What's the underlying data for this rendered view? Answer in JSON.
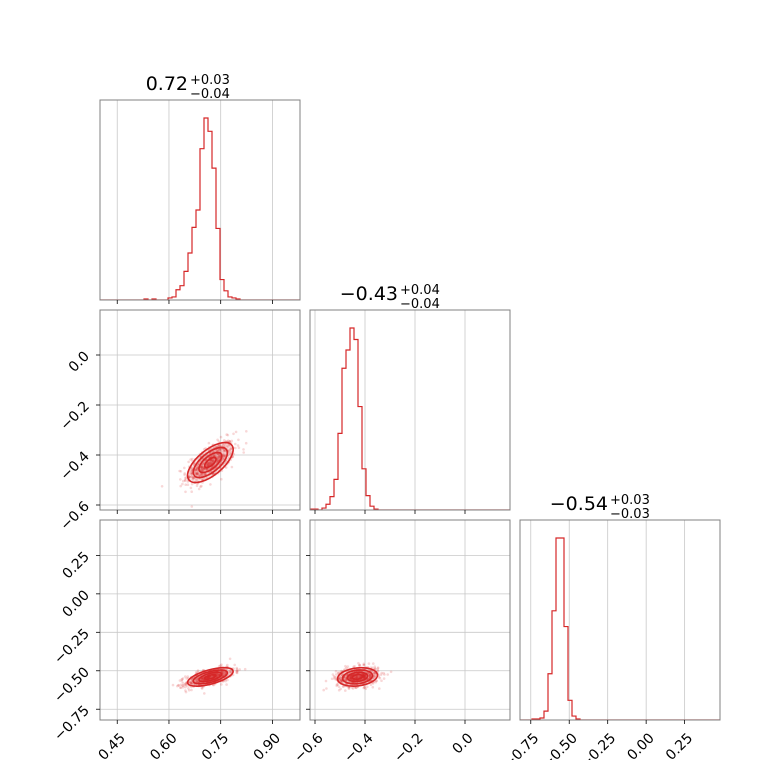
{
  "chart_data": {
    "type": "corner",
    "color": "#d62728",
    "parameters": [
      {
        "title_value": "0.72",
        "err_plus": "+0.03",
        "err_minus": "−0.04",
        "range": [
          0.4,
          0.98
        ],
        "ticks": [
          0.45,
          0.6,
          0.75,
          0.9
        ],
        "tick_labels": [
          "0.45",
          "0.60",
          "0.75",
          "0.90"
        ]
      },
      {
        "title_value": "−0.43",
        "err_plus": "+0.04",
        "err_minus": "−0.04",
        "range": [
          -0.62,
          0.18
        ],
        "ticks": [
          -0.6,
          -0.4,
          -0.2,
          0.0
        ],
        "tick_labels": [
          "−0.6",
          "−0.4",
          "−0.2",
          "0.0"
        ]
      },
      {
        "title_value": "−0.54",
        "err_plus": "+0.03",
        "err_minus": "−0.03",
        "range": [
          -0.82,
          0.48
        ],
        "ticks": [
          -0.75,
          -0.5,
          -0.25,
          0.0,
          0.25
        ],
        "tick_labels": [
          "−0.75",
          "−0.50",
          "−0.25",
          "0.00",
          "0.25"
        ]
      }
    ],
    "histograms": [
      {
        "bin_start": 0.4,
        "bin_width": 0.0116,
        "counts": [
          0,
          0,
          0,
          0,
          0,
          0,
          0,
          0,
          0,
          0,
          0,
          1,
          0,
          1,
          0,
          0,
          0,
          2,
          3,
          10,
          14,
          28,
          46,
          71,
          88,
          148,
          178,
          165,
          129,
          70,
          20,
          9,
          3,
          2,
          1,
          0,
          0,
          0,
          0,
          0,
          0,
          0,
          0,
          0,
          0,
          0,
          0,
          0,
          0,
          0
        ]
      },
      {
        "bin_start": -0.62,
        "bin_width": 0.016,
        "counts": [
          1,
          1,
          0,
          2,
          6,
          14,
          32,
          80,
          148,
          167,
          190,
          178,
          108,
          43,
          15,
          4,
          1,
          0,
          0,
          0,
          0,
          0,
          0,
          0,
          0,
          0,
          0,
          0,
          0,
          0,
          0,
          0,
          0,
          0,
          0,
          0,
          0,
          0,
          0,
          0,
          0,
          0,
          0,
          0,
          0,
          0,
          0,
          0,
          0,
          0
        ]
      },
      {
        "bin_start": -0.82,
        "bin_width": 0.026,
        "counts": [
          0,
          0,
          0,
          1,
          1,
          2,
          9,
          47,
          111,
          185,
          185,
          95,
          20,
          4,
          1,
          0,
          0,
          0,
          0,
          0,
          0,
          0,
          0,
          0,
          0,
          0,
          0,
          0,
          0,
          0,
          0,
          0,
          0,
          0,
          0,
          0,
          0,
          0,
          0,
          0,
          0,
          0,
          0,
          0,
          0,
          0,
          0,
          0,
          0,
          0
        ]
      }
    ],
    "pairs": [
      {
        "row": 1,
        "col": 0,
        "center": [
          0.72,
          -0.43
        ],
        "sigma": [
          0.033,
          0.04
        ],
        "rho": 0.65
      },
      {
        "row": 2,
        "col": 0,
        "center": [
          0.72,
          -0.54
        ],
        "sigma": [
          0.033,
          0.03
        ],
        "rho": 0.6
      },
      {
        "row": 2,
        "col": 1,
        "center": [
          -0.43,
          -0.54
        ],
        "sigma": [
          0.04,
          0.03
        ],
        "rho": 0.2
      }
    ],
    "contour_levels_sigma": [
      0.5,
      1.0,
      1.5,
      2.0
    ],
    "grid": true
  }
}
